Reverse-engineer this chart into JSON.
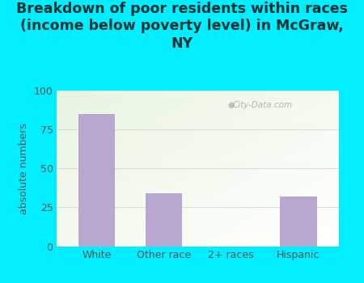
{
  "categories": [
    "White",
    "Other race",
    "2+ races",
    "Hispanic"
  ],
  "values": [
    85,
    34,
    0,
    32
  ],
  "bar_color": "#b8a8d0",
  "title": "Breakdown of poor residents within races\n(income below poverty level) in McGraw,\nNY",
  "ylabel": "absolute numbers",
  "ylim": [
    0,
    100
  ],
  "yticks": [
    0,
    25,
    50,
    75,
    100
  ],
  "background_color": "#00eeff",
  "plot_bg_top_left": "#e8f5e0",
  "plot_bg_bottom": "#ffffff",
  "title_color": "#003333",
  "axis_color": "#555555",
  "grid_color": "#dddddd",
  "watermark": "City-Data.com",
  "title_fontsize": 12.5,
  "ylabel_fontsize": 9,
  "tick_fontsize": 9
}
